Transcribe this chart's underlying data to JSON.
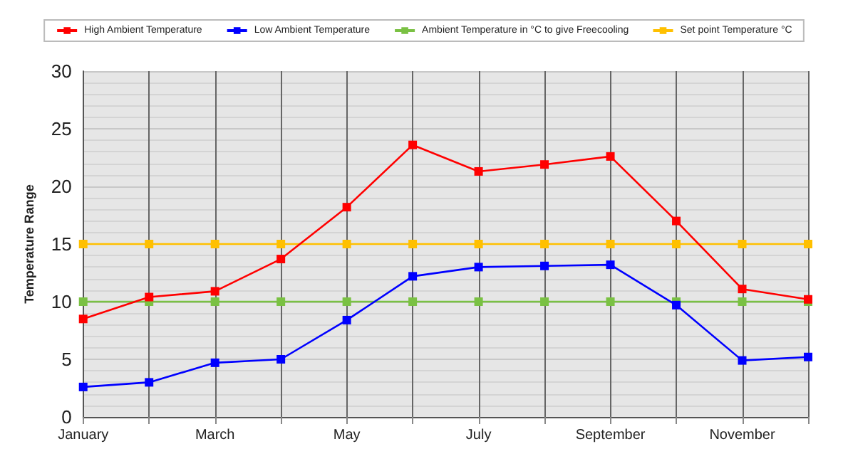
{
  "chart_data": {
    "type": "line",
    "ylabel": "Temperature Range",
    "categories": [
      "January",
      null,
      "March",
      null,
      "May",
      null,
      "July",
      null,
      "September",
      null,
      "November",
      null
    ],
    "series": [
      {
        "name": "High Ambient Temperature",
        "color": "#ff0000",
        "values": [
          8.5,
          10.4,
          10.9,
          13.7,
          18.2,
          23.6,
          21.3,
          21.9,
          22.6,
          17.0,
          11.1,
          10.2
        ]
      },
      {
        "name": "Low Ambient Temperature",
        "color": "#0000ff",
        "values": [
          2.6,
          3.0,
          4.7,
          5.0,
          8.4,
          12.2,
          13.0,
          13.1,
          13.2,
          9.7,
          4.9,
          5.2
        ]
      },
      {
        "name": "Ambient Temperature in °C to give Freecooling",
        "color": "#7ac143",
        "values": [
          10,
          10,
          10,
          10,
          10,
          10,
          10,
          10,
          10,
          10,
          10,
          10
        ]
      },
      {
        "name": "Set point Temperature °C",
        "color": "#ffc000",
        "values": [
          15,
          15,
          15,
          15,
          15,
          15,
          15,
          15,
          15,
          15,
          15,
          15
        ]
      }
    ],
    "ylim": [
      0,
      30
    ],
    "yticks": [
      0,
      5,
      10,
      15,
      20,
      25,
      30
    ],
    "grid": true,
    "legend": "top",
    "marker": "square",
    "line_style": "solid"
  }
}
